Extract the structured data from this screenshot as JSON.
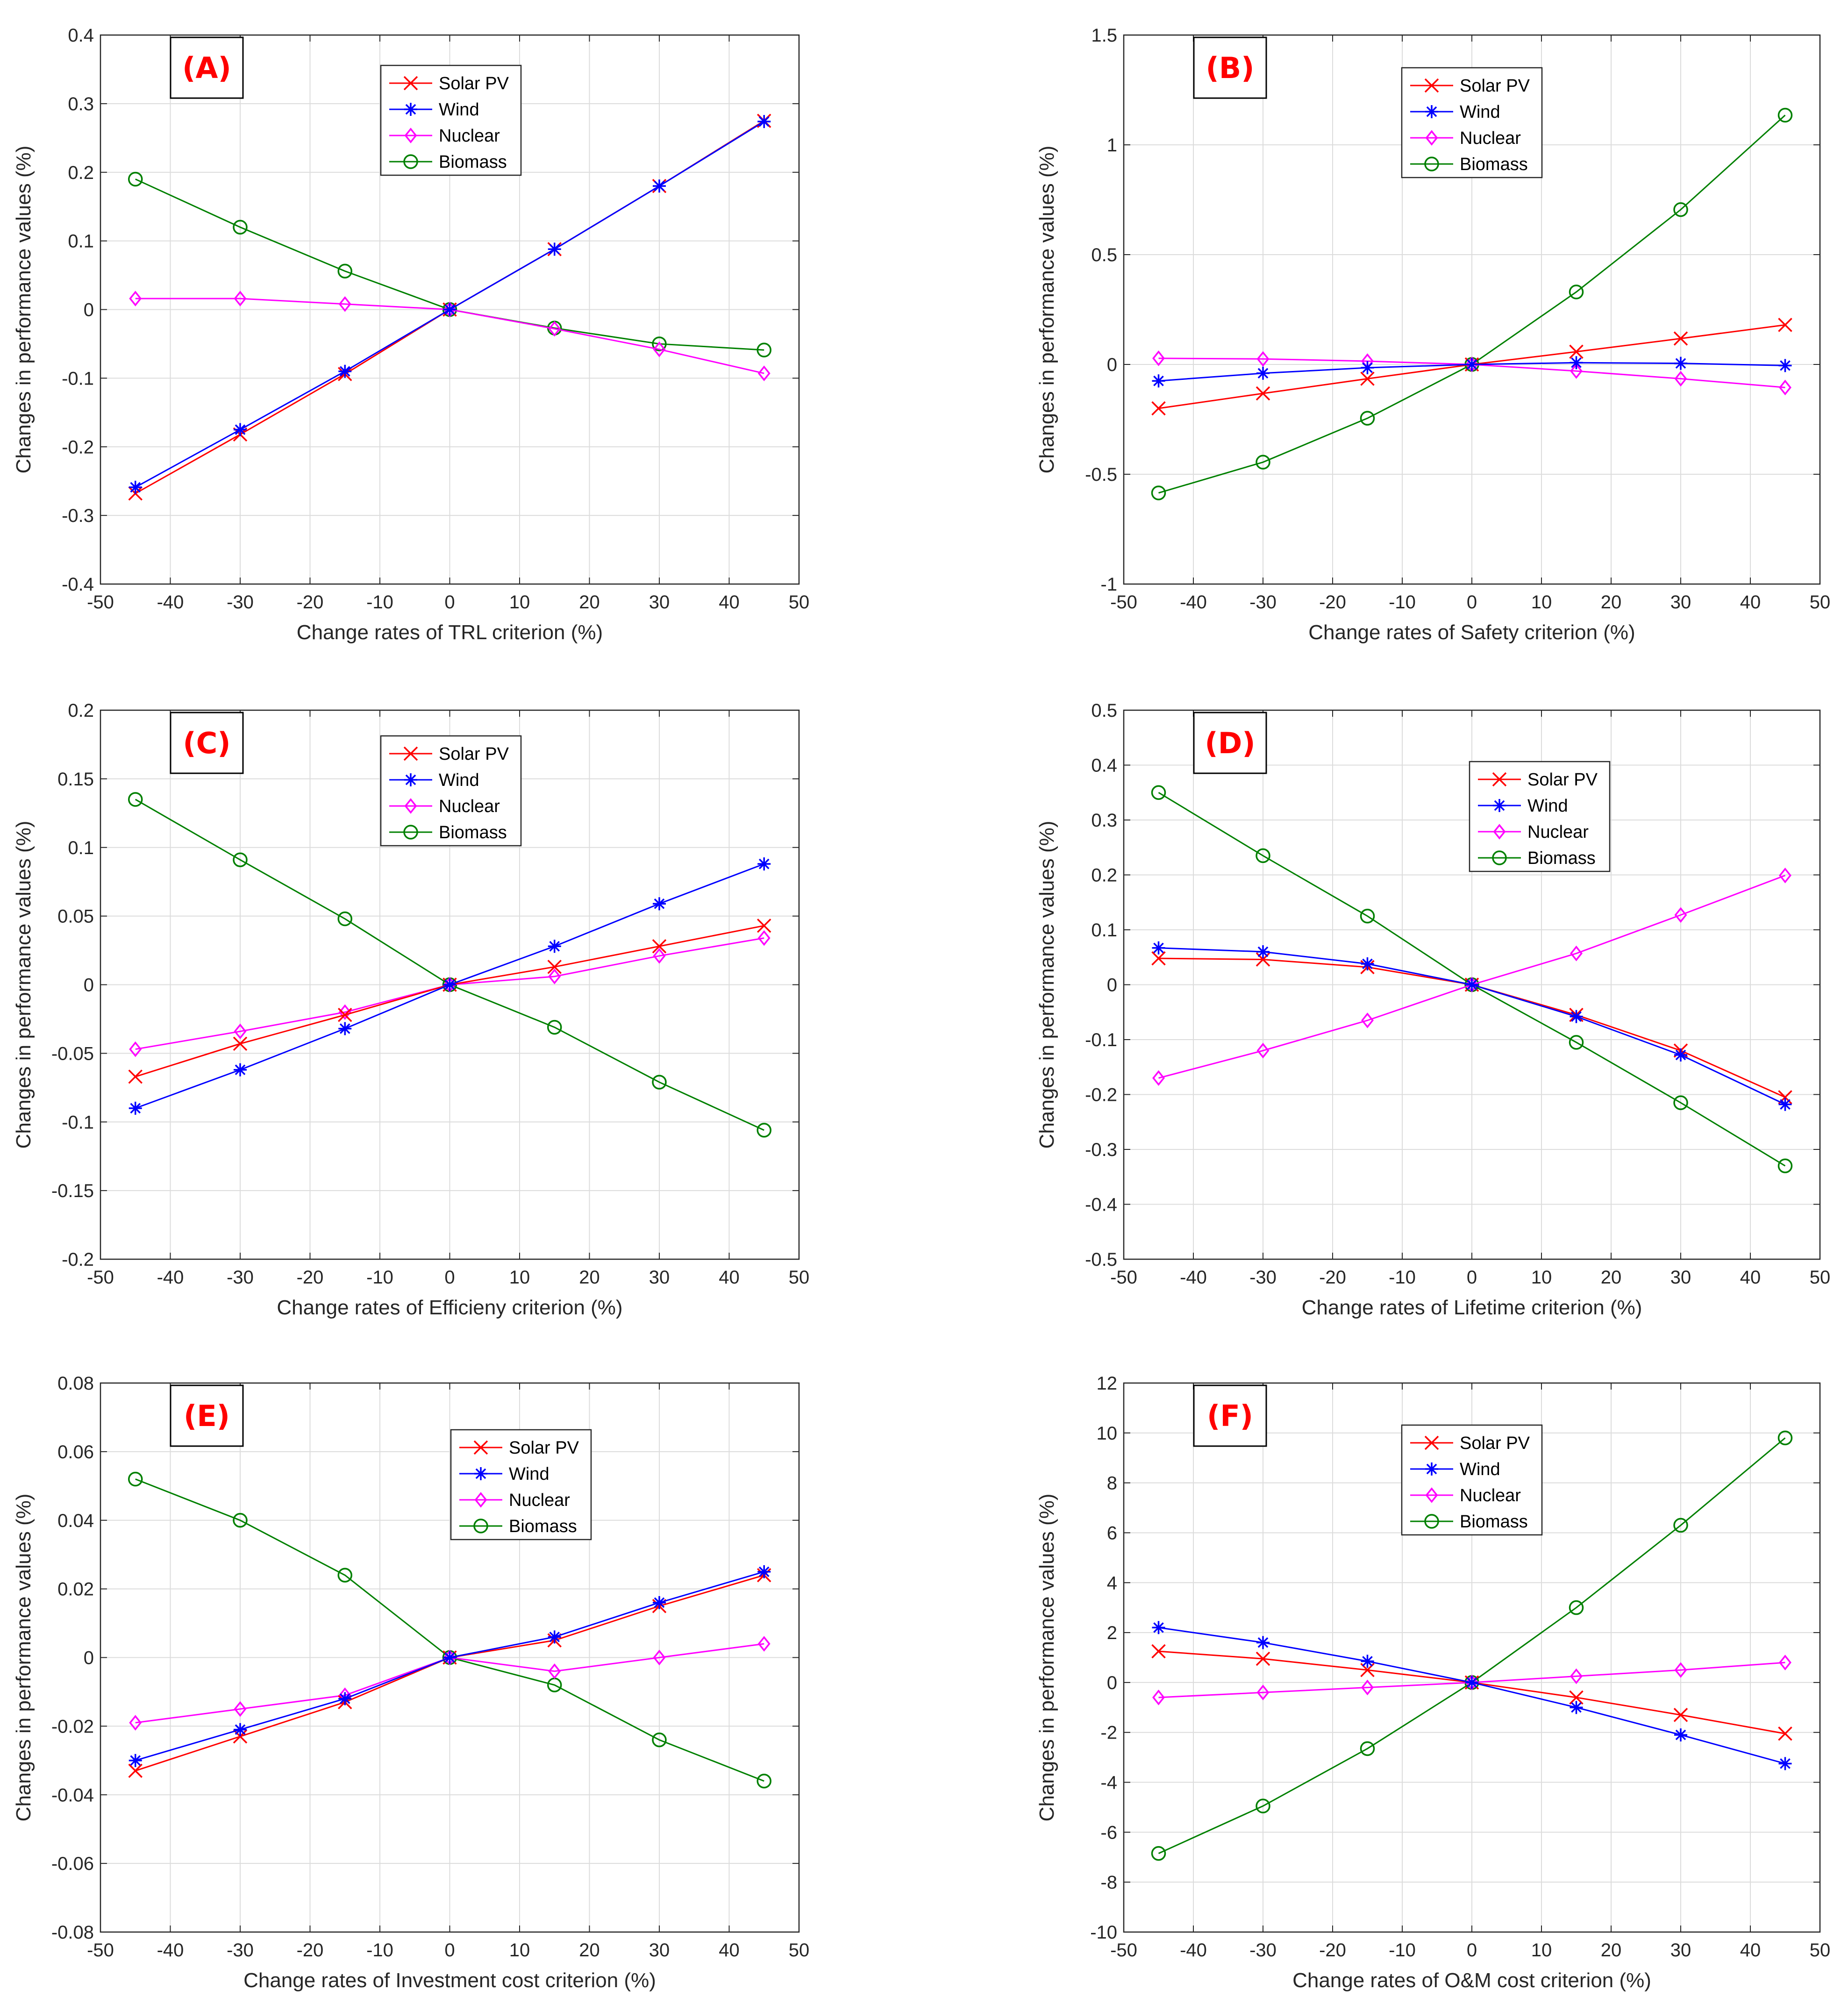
{
  "colors": {
    "Solar PV": "#ff0000",
    "Wind": "#0000ff",
    "Nuclear": "#ff00ff",
    "Biomass": "#008000"
  },
  "markers": {
    "Solar PV": "x",
    "Wind": "star",
    "Nuclear": "diamond",
    "Biomass": "circle"
  },
  "chart_data": [
    {
      "type": "line",
      "tag": "(A)",
      "xlabel": "Change rates of TRL criterion (%)",
      "ylabel": "Changes in performance values (%)",
      "xlim": [
        -50,
        50
      ],
      "ylim": [
        -0.4,
        0.4
      ],
      "xticks": [
        "-50",
        "-40",
        "-30",
        "-20",
        "-10",
        "0",
        "10",
        "20",
        "30",
        "40",
        "50"
      ],
      "yticks": [
        "-0.4",
        "-0.3",
        "-0.2",
        "-0.1",
        "0",
        "0.1",
        "0.2",
        "0.3",
        "0.4"
      ],
      "grid": true,
      "legend": "top-center",
      "x": [
        -45,
        -30,
        -15,
        0,
        15,
        30,
        45
      ],
      "series": [
        {
          "name": "Solar PV",
          "values": [
            -0.268,
            -0.182,
            -0.094,
            0,
            0.088,
            0.18,
            0.275
          ]
        },
        {
          "name": "Wind",
          "values": [
            -0.259,
            -0.175,
            -0.09,
            0,
            0.088,
            0.18,
            0.274
          ]
        },
        {
          "name": "Nuclear",
          "values": [
            0.016,
            0.016,
            0.008,
            0,
            -0.028,
            -0.058,
            -0.093
          ]
        },
        {
          "name": "Biomass",
          "values": [
            0.19,
            0.12,
            0.056,
            0,
            -0.027,
            -0.05,
            -0.059
          ]
        }
      ]
    },
    {
      "type": "line",
      "tag": "(B)",
      "xlabel": "Change rates of Safety criterion (%)",
      "ylabel": "Changes in performance values (%)",
      "xlim": [
        -50,
        50
      ],
      "ylim": [
        -1,
        1.5
      ],
      "xticks": [
        "-50",
        "-40",
        "-30",
        "-20",
        "-10",
        "0",
        "10",
        "20",
        "30",
        "40",
        "50"
      ],
      "yticks": [
        "-1",
        "-0.5",
        "0",
        "0.5",
        "1",
        "1.5"
      ],
      "grid": true,
      "legend": "top-center",
      "x": [
        -45,
        -30,
        -15,
        0,
        15,
        30,
        45
      ],
      "series": [
        {
          "name": "Solar PV",
          "values": [
            -0.2,
            -0.132,
            -0.065,
            0,
            0.058,
            0.118,
            0.18
          ]
        },
        {
          "name": "Wind",
          "values": [
            -0.075,
            -0.04,
            -0.015,
            0,
            0.008,
            0.005,
            -0.005
          ]
        },
        {
          "name": "Nuclear",
          "values": [
            0.028,
            0.025,
            0.015,
            0,
            -0.03,
            -0.065,
            -0.105
          ]
        },
        {
          "name": "Biomass",
          "values": [
            -0.585,
            -0.445,
            -0.245,
            0,
            0.33,
            0.705,
            1.135
          ]
        }
      ]
    },
    {
      "type": "line",
      "tag": "(C)",
      "xlabel": "Change rates of Efficieny criterion (%)",
      "ylabel": "Changes in performance values (%)",
      "xlim": [
        -50,
        50
      ],
      "ylim": [
        -0.2,
        0.2
      ],
      "xticks": [
        "-50",
        "-40",
        "-30",
        "-20",
        "-10",
        "0",
        "10",
        "20",
        "30",
        "40",
        "50"
      ],
      "yticks": [
        "-0.2",
        "-0.15",
        "-0.1",
        "-0.05",
        "0",
        "0.05",
        "0.1",
        "0.15",
        "0.2"
      ],
      "grid": true,
      "legend": "top-center",
      "x": [
        -45,
        -30,
        -15,
        0,
        15,
        30,
        45
      ],
      "series": [
        {
          "name": "Solar PV",
          "values": [
            -0.067,
            -0.043,
            -0.022,
            0,
            0.013,
            0.028,
            0.043
          ]
        },
        {
          "name": "Wind",
          "values": [
            -0.09,
            -0.062,
            -0.032,
            0,
            0.028,
            0.059,
            0.088
          ]
        },
        {
          "name": "Nuclear",
          "values": [
            -0.047,
            -0.034,
            -0.02,
            0,
            0.006,
            0.021,
            0.034
          ]
        },
        {
          "name": "Biomass",
          "values": [
            0.135,
            0.091,
            0.048,
            0,
            -0.031,
            -0.071,
            -0.106
          ]
        }
      ]
    },
    {
      "type": "line",
      "tag": "(D)",
      "xlabel": "Change rates of Lifetime criterion (%)",
      "ylabel": "Changes in performance values (%)",
      "xlim": [
        -50,
        50
      ],
      "ylim": [
        -0.5,
        0.5
      ],
      "xticks": [
        "-50",
        "-40",
        "-30",
        "-20",
        "-10",
        "0",
        "10",
        "20",
        "30",
        "40",
        "50"
      ],
      "yticks": [
        "-0.5",
        "-0.4",
        "-0.3",
        "-0.2",
        "-0.1",
        "0",
        "0.1",
        "0.2",
        "0.3",
        "0.4",
        "0.5"
      ],
      "grid": true,
      "legend": "top-center",
      "x": [
        -45,
        -30,
        -15,
        0,
        15,
        30,
        45
      ],
      "series": [
        {
          "name": "Solar PV",
          "values": [
            0.048,
            0.046,
            0.032,
            0,
            -0.055,
            -0.12,
            -0.205
          ]
        },
        {
          "name": "Wind",
          "values": [
            0.067,
            0.06,
            0.038,
            0,
            -0.058,
            -0.128,
            -0.218
          ]
        },
        {
          "name": "Nuclear",
          "values": [
            -0.17,
            -0.12,
            -0.065,
            0,
            0.057,
            0.127,
            0.199
          ]
        },
        {
          "name": "Biomass",
          "values": [
            0.35,
            0.235,
            0.125,
            0,
            -0.105,
            -0.215,
            -0.33
          ]
        }
      ]
    },
    {
      "type": "line",
      "tag": "(E)",
      "xlabel": "Change rates of Investment cost criterion (%)",
      "ylabel": "Changes in performance values (%)",
      "xlim": [
        -50,
        50
      ],
      "ylim": [
        -0.08,
        0.08
      ],
      "xticks": [
        "-50",
        "-40",
        "-30",
        "-20",
        "-10",
        "0",
        "10",
        "20",
        "30",
        "40",
        "50"
      ],
      "yticks": [
        "-0.08",
        "-0.06",
        "-0.04",
        "-0.02",
        "0",
        "0.02",
        "0.04",
        "0.06",
        "0.08"
      ],
      "grid": true,
      "legend": "top-right",
      "x": [
        -45,
        -30,
        -15,
        0,
        15,
        30,
        45
      ],
      "series": [
        {
          "name": "Solar PV",
          "values": [
            -0.033,
            -0.023,
            -0.013,
            0,
            0.005,
            0.015,
            0.024
          ]
        },
        {
          "name": "Wind",
          "values": [
            -0.03,
            -0.021,
            -0.012,
            0,
            0.006,
            0.016,
            0.025
          ]
        },
        {
          "name": "Nuclear",
          "values": [
            -0.019,
            -0.015,
            -0.011,
            0,
            -0.004,
            0.0,
            0.004
          ]
        },
        {
          "name": "Biomass",
          "values": [
            0.052,
            0.04,
            0.024,
            0,
            -0.008,
            -0.024,
            -0.036
          ]
        }
      ]
    },
    {
      "type": "line",
      "tag": "(F)",
      "xlabel": "Change rates of O&M cost criterion (%)",
      "ylabel": "Changes in performance values (%)",
      "xlim": [
        -50,
        50
      ],
      "ylim": [
        -10,
        12
      ],
      "xticks": [
        "-50",
        "-40",
        "-30",
        "-20",
        "-10",
        "0",
        "10",
        "20",
        "30",
        "40",
        "50"
      ],
      "yticks": [
        "-10",
        "-8",
        "-6",
        "-4",
        "-2",
        "0",
        "2",
        "4",
        "6",
        "8",
        "10",
        "12"
      ],
      "grid": true,
      "legend": "top-center",
      "x": [
        -45,
        -30,
        -15,
        0,
        15,
        30,
        45
      ],
      "series": [
        {
          "name": "Solar PV",
          "values": [
            1.25,
            0.95,
            0.5,
            0,
            -0.6,
            -1.3,
            -2.05
          ]
        },
        {
          "name": "Wind",
          "values": [
            2.2,
            1.6,
            0.85,
            0,
            -1.0,
            -2.1,
            -3.25
          ]
        },
        {
          "name": "Nuclear",
          "values": [
            -0.6,
            -0.4,
            -0.2,
            0,
            0.25,
            0.5,
            0.8
          ]
        },
        {
          "name": "Biomass",
          "values": [
            -6.85,
            -4.95,
            -2.65,
            0,
            3.0,
            6.3,
            9.8
          ]
        }
      ]
    }
  ]
}
